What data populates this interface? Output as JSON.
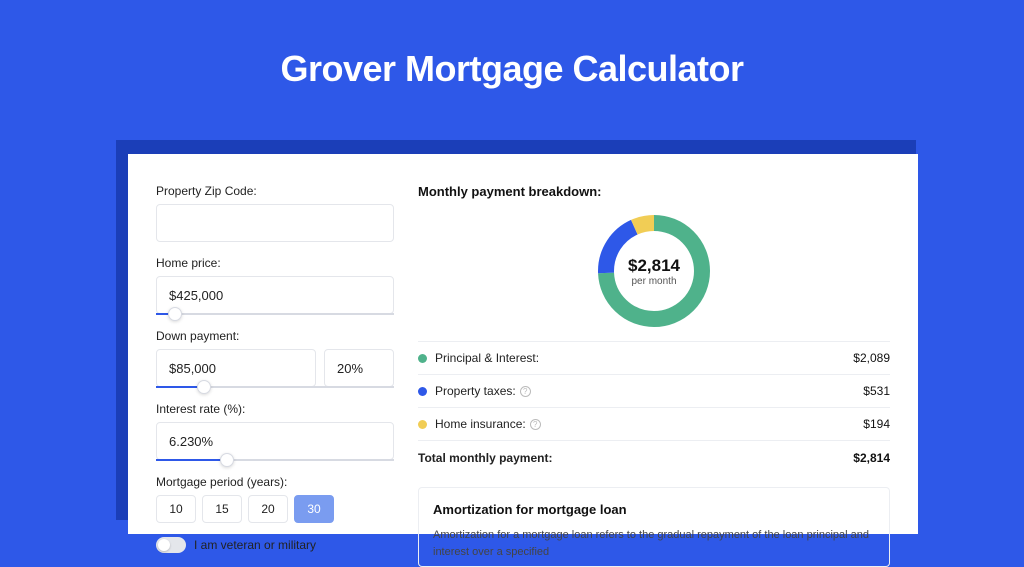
{
  "page": {
    "title": "Grover Mortgage Calculator",
    "bg_color": "#2e58e8",
    "shadow_color": "#1b3eb8",
    "card_bg": "#ffffff"
  },
  "form": {
    "zip": {
      "label": "Property Zip Code:",
      "value": ""
    },
    "home_price": {
      "label": "Home price:",
      "value": "$425,000",
      "slider_percent": 8
    },
    "down_payment": {
      "label": "Down payment:",
      "value": "$85,000",
      "percent": "20%",
      "slider_percent": 20
    },
    "interest_rate": {
      "label": "Interest rate (%):",
      "value": "6.230%",
      "slider_percent": 30
    },
    "period": {
      "label": "Mortgage period (years):",
      "options": [
        "10",
        "15",
        "20",
        "30"
      ],
      "selected": "30"
    },
    "veteran": {
      "label": "I am veteran or military",
      "checked": false
    }
  },
  "breakdown": {
    "title": "Monthly payment breakdown:",
    "donut": {
      "type": "donut",
      "center_value": "$2,814",
      "center_sub": "per month",
      "stroke_width": 16,
      "radius": 48,
      "slices": [
        {
          "key": "principal_interest",
          "value": 2089,
          "color": "#4fb28b"
        },
        {
          "key": "property_taxes",
          "value": 531,
          "color": "#2e58e8"
        },
        {
          "key": "home_insurance",
          "value": 194,
          "color": "#f1cd55"
        }
      ]
    },
    "legend": [
      {
        "label": "Principal & Interest:",
        "value": "$2,089",
        "color": "#4fb28b",
        "info": false
      },
      {
        "label": "Property taxes:",
        "value": "$531",
        "color": "#2e58e8",
        "info": true
      },
      {
        "label": "Home insurance:",
        "value": "$194",
        "color": "#f1cd55",
        "info": true
      }
    ],
    "total": {
      "label": "Total monthly payment:",
      "value": "$2,814"
    }
  },
  "amortization": {
    "title": "Amortization for mortgage loan",
    "text": "Amortization for a mortgage loan refers to the gradual repayment of the loan principal and interest over a specified"
  }
}
